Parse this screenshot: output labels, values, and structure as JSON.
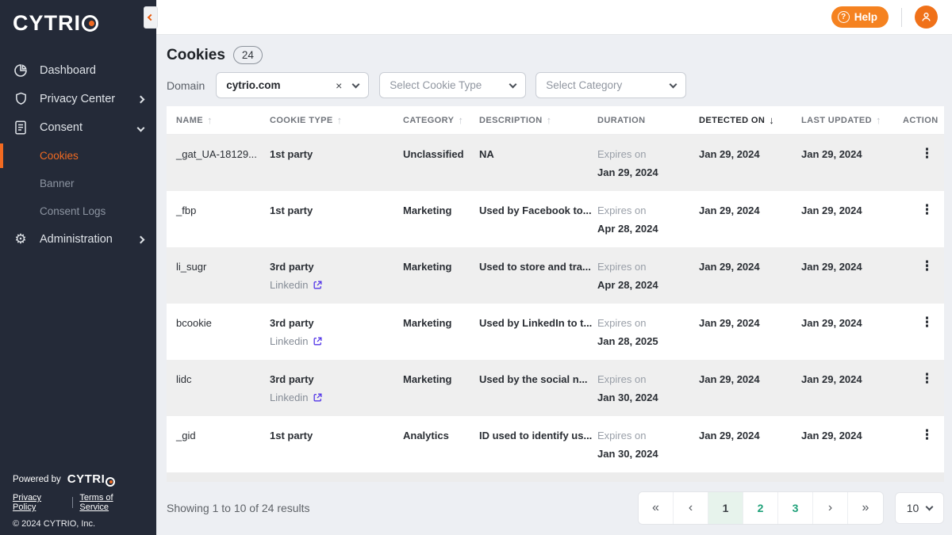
{
  "brand": {
    "logo_text": "CYTRI",
    "powered_by_label": "Powered by",
    "privacy_policy_link": "Privacy Policy",
    "terms_link": "Terms of Service",
    "copyright": "© 2024 CYTRIO, Inc."
  },
  "topbar": {
    "help_label": "Help",
    "help_icon_glyph": "?"
  },
  "sidebar": {
    "items": [
      {
        "label": "Dashboard",
        "icon": "dashboard",
        "chevron": null
      },
      {
        "label": "Privacy Center",
        "icon": "shield",
        "chevron": "right"
      },
      {
        "label": "Consent",
        "icon": "document",
        "chevron": "down"
      },
      {
        "label": "Administration",
        "icon": "gear",
        "chevron": "right"
      }
    ],
    "consent_subitems": [
      {
        "label": "Cookies",
        "active": true
      },
      {
        "label": "Banner",
        "active": false
      },
      {
        "label": "Consent Logs",
        "active": false
      }
    ]
  },
  "page": {
    "title": "Cookies",
    "count_badge": "24",
    "filters": {
      "domain_label": "Domain",
      "domain_value": "cytrio.com",
      "clear_glyph": "×",
      "cookie_type_placeholder": "Select Cookie Type",
      "category_placeholder": "Select Category"
    }
  },
  "table": {
    "columns": [
      {
        "label": "NAME",
        "sort": "up"
      },
      {
        "label": "COOKIE TYPE",
        "sort": "up"
      },
      {
        "label": "CATEGORY",
        "sort": "up"
      },
      {
        "label": "DESCRIPTION",
        "sort": "up"
      },
      {
        "label": "DURATION",
        "sort": null
      },
      {
        "label": "DETECTED ON",
        "sort": "down-active"
      },
      {
        "label": "LAST UPDATED",
        "sort": "up"
      },
      {
        "label": "ACTION",
        "sort": null
      }
    ],
    "rows": [
      {
        "name": "_gat_UA-18129...",
        "cookie_type": "1st party",
        "provider": "",
        "category": "Unclassified",
        "description": "NA",
        "duration_label": "Expires on",
        "duration_date": "Jan 29, 2024",
        "detected_on": "Jan 29, 2024",
        "last_updated": "Jan 29, 2024"
      },
      {
        "name": "_fbp",
        "cookie_type": "1st party",
        "provider": "",
        "category": "Marketing",
        "description": "Used by Facebook to...",
        "duration_label": "Expires on",
        "duration_date": "Apr 28, 2024",
        "detected_on": "Jan 29, 2024",
        "last_updated": "Jan 29, 2024"
      },
      {
        "name": "li_sugr",
        "cookie_type": "3rd party",
        "provider": "Linkedin",
        "category": "Marketing",
        "description": "Used to store and tra...",
        "duration_label": "Expires on",
        "duration_date": "Apr 28, 2024",
        "detected_on": "Jan 29, 2024",
        "last_updated": "Jan 29, 2024"
      },
      {
        "name": "bcookie",
        "cookie_type": "3rd party",
        "provider": "Linkedin",
        "category": "Marketing",
        "description": "Used by LinkedIn to t...",
        "duration_label": "Expires on",
        "duration_date": "Jan 28, 2025",
        "detected_on": "Jan 29, 2024",
        "last_updated": "Jan 29, 2024"
      },
      {
        "name": "lidc",
        "cookie_type": "3rd party",
        "provider": "Linkedin",
        "category": "Marketing",
        "description": "Used by the social n...",
        "duration_label": "Expires on",
        "duration_date": "Jan 30, 2024",
        "detected_on": "Jan 29, 2024",
        "last_updated": "Jan 29, 2024"
      },
      {
        "name": "_gid",
        "cookie_type": "1st party",
        "provider": "",
        "category": "Analytics",
        "description": "ID used to identify us...",
        "duration_label": "Expires on",
        "duration_date": "Jan 30, 2024",
        "detected_on": "Jan 29, 2024",
        "last_updated": "Jan 29, 2024"
      }
    ],
    "kebab_glyph": "⋮"
  },
  "pagination": {
    "summary": "Showing 1 to 10 of 24 results",
    "first_glyph": "«",
    "prev_glyph": "‹",
    "next_glyph": "›",
    "last_glyph": "»",
    "pages": [
      "1",
      "2",
      "3"
    ],
    "active_page": "1",
    "page_size": "10"
  },
  "colors": {
    "accent_orange": "#F26A21",
    "help_orange": "#F58220",
    "sidebar_bg": "#242A38",
    "pagination_green": "#1FA179",
    "active_page_bg": "#E7F3EC",
    "external_link_purple": "#5235E8"
  }
}
